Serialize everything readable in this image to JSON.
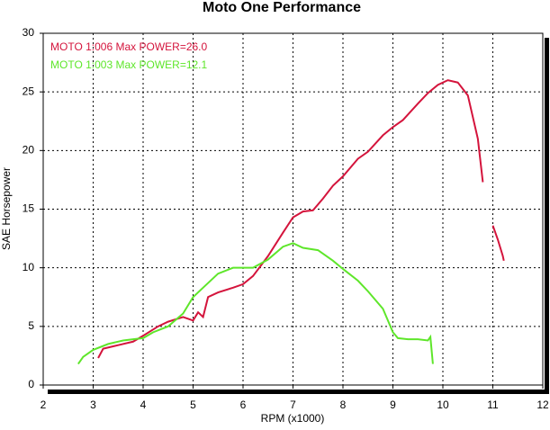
{
  "chart_data": {
    "type": "line",
    "title": "Moto One Performance",
    "x_label": "RPM (x1000)",
    "y_label": "SAE Horsepower",
    "xlim": [
      2,
      12
    ],
    "xticks": [
      2,
      3,
      4,
      5,
      6,
      7,
      8,
      9,
      10,
      11,
      12
    ],
    "ylim": [
      0,
      30
    ],
    "yticks": [
      0,
      5,
      10,
      15,
      20,
      25,
      30
    ],
    "grid": true,
    "series": [
      {
        "name": "MOTO 1:006  Max POWER=26.0",
        "color": "#d4143c",
        "x": [
          3.1,
          3.2,
          3.5,
          3.8,
          4.0,
          4.3,
          4.5,
          4.8,
          5.0,
          5.1,
          5.2,
          5.3,
          5.5,
          5.8,
          6.0,
          6.2,
          6.5,
          6.8,
          7.0,
          7.2,
          7.4,
          7.6,
          7.8,
          8.0,
          8.3,
          8.5,
          8.8,
          9.0,
          9.2,
          9.5,
          9.7,
          9.9,
          10.1,
          10.3,
          10.5,
          10.7,
          10.8,
          10.9,
          11.0,
          11.1,
          11.2,
          11.22
        ],
        "values": [
          2.3,
          3.1,
          3.4,
          3.7,
          4.2,
          5.0,
          5.4,
          5.8,
          5.5,
          6.2,
          5.8,
          7.5,
          7.9,
          8.3,
          8.6,
          9.3,
          11.0,
          13.0,
          14.3,
          14.8,
          14.9,
          15.9,
          17.0,
          17.8,
          19.3,
          19.9,
          21.3,
          22.0,
          22.6,
          24.0,
          24.9,
          25.6,
          26.0,
          25.8,
          24.7,
          21.0,
          17.3,
          null,
          13.6,
          12.4,
          11.0,
          10.6
        ]
      },
      {
        "name": "MOTO 1:003  Max POWER=12.1",
        "color": "#5ee62a",
        "x": [
          2.7,
          2.8,
          3.0,
          3.3,
          3.6,
          3.8,
          4.0,
          4.2,
          4.5,
          4.8,
          5.0,
          5.2,
          5.5,
          5.8,
          6.0,
          6.2,
          6.5,
          6.8,
          7.0,
          7.2,
          7.5,
          7.8,
          8.0,
          8.3,
          8.5,
          8.8,
          9.0,
          9.1,
          9.3,
          9.5,
          9.7,
          9.75,
          9.8
        ],
        "values": [
          1.8,
          2.4,
          3.0,
          3.5,
          3.8,
          3.9,
          4.0,
          4.5,
          5.0,
          6.1,
          7.5,
          8.3,
          9.5,
          10.0,
          10.0,
          10.0,
          10.7,
          11.8,
          12.1,
          11.7,
          11.5,
          10.6,
          9.9,
          8.9,
          8.0,
          6.5,
          4.5,
          4.0,
          3.9,
          3.9,
          3.8,
          4.1,
          1.8
        ]
      }
    ]
  }
}
